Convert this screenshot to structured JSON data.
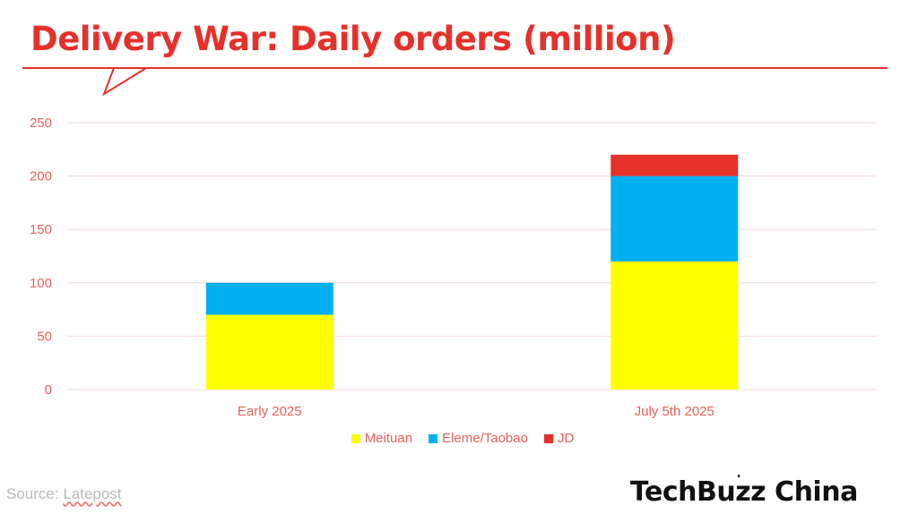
{
  "header": {
    "title": "Delivery War: Daily orders (million)"
  },
  "colors": {
    "accent": "#e8302a",
    "axis_text": "#e8605a",
    "grid": "#f6dada",
    "meituan": "#ffff00",
    "eleme": "#00b0f0",
    "jd": "#e8302a"
  },
  "chart_data": {
    "type": "bar",
    "stacked": true,
    "title": "Delivery War: Daily orders (million)",
    "xlabel": "",
    "ylabel": "",
    "categories": [
      "Early 2025",
      "July 5th 2025"
    ],
    "series": [
      {
        "name": "Meituan",
        "color": "#ffff00",
        "values": [
          70,
          120
        ]
      },
      {
        "name": "Eleme/Taobao",
        "color": "#00b0f0",
        "values": [
          30,
          80
        ]
      },
      {
        "name": "JD",
        "color": "#e8302a",
        "values": [
          0,
          20
        ]
      }
    ],
    "ylim": [
      0,
      250
    ],
    "yticks": [
      "0",
      "50",
      "100",
      "150",
      "200",
      "250"
    ],
    "grid": true,
    "legend": "bottom"
  },
  "footer": {
    "source_prefix": "Source: ",
    "source_link": "Latepost",
    "logo": "TechBuzz China"
  }
}
